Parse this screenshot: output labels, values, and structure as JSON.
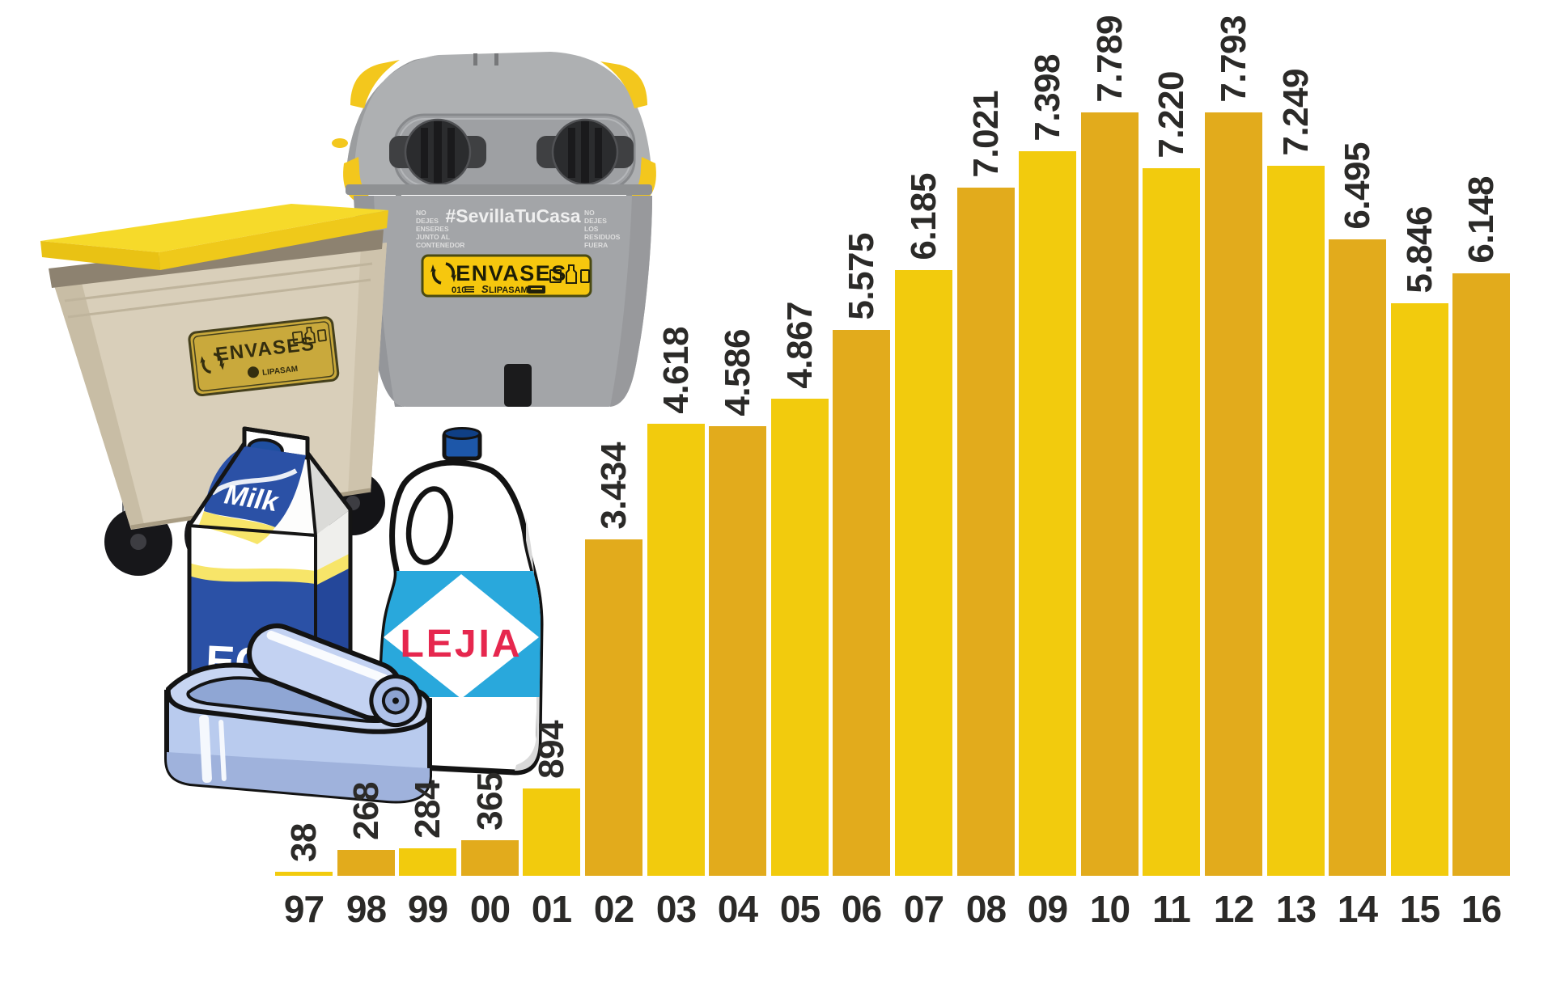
{
  "chart_data": {
    "type": "bar",
    "title": "",
    "xlabel": "",
    "ylabel": "",
    "categories": [
      "97",
      "98",
      "99",
      "00",
      "01",
      "02",
      "03",
      "04",
      "05",
      "06",
      "07",
      "08",
      "09",
      "10",
      "11",
      "12",
      "13",
      "14",
      "15",
      "16"
    ],
    "values": [
      38,
      268,
      284,
      365,
      894,
      3434,
      4618,
      4586,
      4867,
      5575,
      6185,
      7021,
      7398,
      7789,
      7220,
      7793,
      7249,
      6495,
      5846,
      6148
    ],
    "value_labels": [
      "38",
      "268",
      "284",
      "365",
      "894",
      "3.434",
      "4.618",
      "4.586",
      "4.867",
      "5.575",
      "6.185",
      "7.021",
      "7.398",
      "7.789",
      "7.220",
      "7.793",
      "7.249",
      "6.495",
      "5.846",
      "6.148"
    ],
    "ylim": [
      0,
      7800
    ],
    "grid": false,
    "legend": false,
    "bar_color_light": "#F2CB0D",
    "bar_color_dark": "#E2AB1C",
    "label_color": "#2B2A28"
  },
  "illustrations": {
    "street_container": {
      "hashtag": "#SevillaTuCasa",
      "left_note_lines": [
        "NO",
        "DEJES",
        "ENSERES",
        "JUNTO AL",
        "CONTENEDOR"
      ],
      "right_note_lines": [
        "NO",
        "DEJES",
        "LOS",
        "RESIDUOS",
        "FUERA"
      ],
      "sticker": {
        "label": "ENVASES",
        "phone": "010",
        "brand": "LIPASAM"
      }
    },
    "wheeled_container": {
      "sticker": {
        "label": "ENVASES",
        "brand": "LIPASAM"
      }
    },
    "milk_carton": {
      "top_label": "Milk",
      "front_label": "LECHE"
    },
    "bleach_bottle": {
      "label": "LEJIA"
    }
  }
}
